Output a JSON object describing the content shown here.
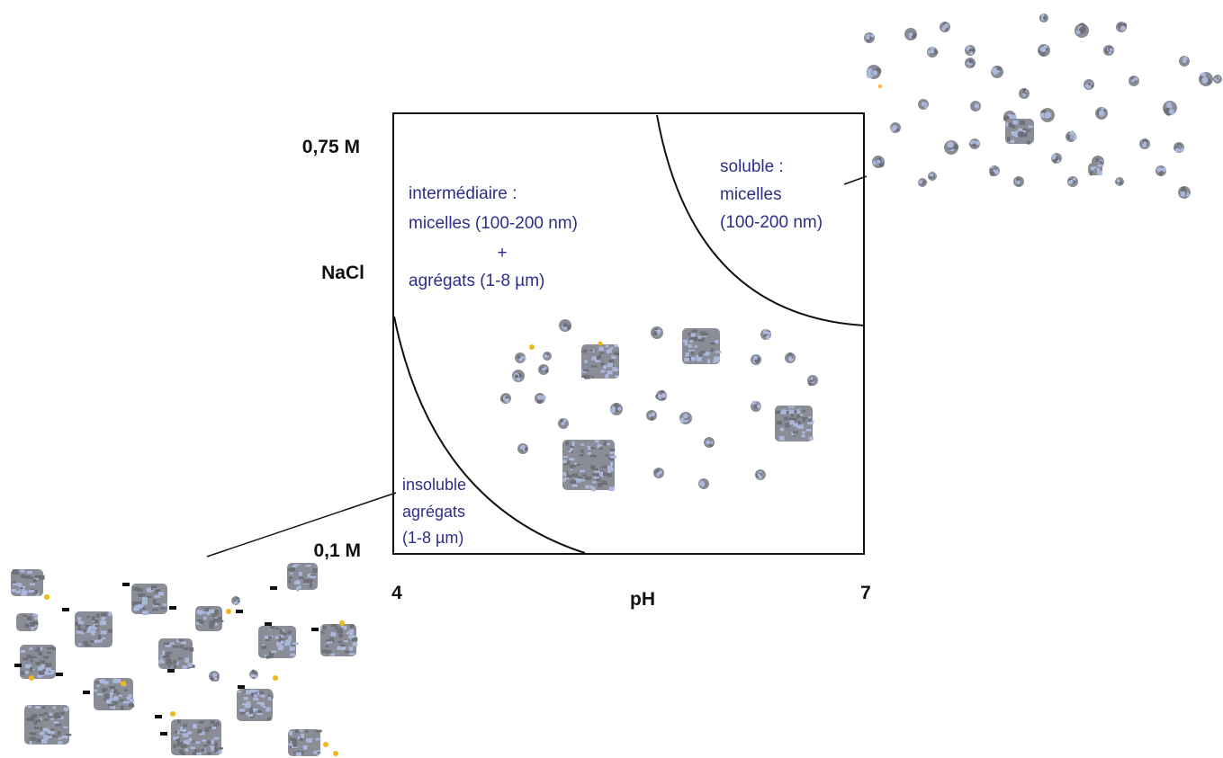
{
  "axes": {
    "y_top": "0,75 M",
    "y_title": "NaCl",
    "y_bottom": "0,1 M",
    "x_left": "4",
    "x_title": "pH",
    "x_right": "7"
  },
  "regions": {
    "intermediate": {
      "line1": "intermédiaire :",
      "line2": "micelles (100-200 nm)",
      "line3": "+",
      "line4": "agrégats (1-8 µm)"
    },
    "soluble": {
      "line1": "soluble :",
      "line2": "micelles",
      "line3": "(100-200 nm)"
    },
    "insoluble": {
      "line1": "insoluble",
      "line2": "agrégats",
      "line3": "(1-8 µm)"
    }
  },
  "colors": {
    "particle_gray": "#8a8d96",
    "particle_blue": "#aab8dc",
    "particle_dark": "#6e7078",
    "accent_yellow": "#f2b51c",
    "black_fragment": "#111111",
    "region_text": "#2e2e8a"
  }
}
